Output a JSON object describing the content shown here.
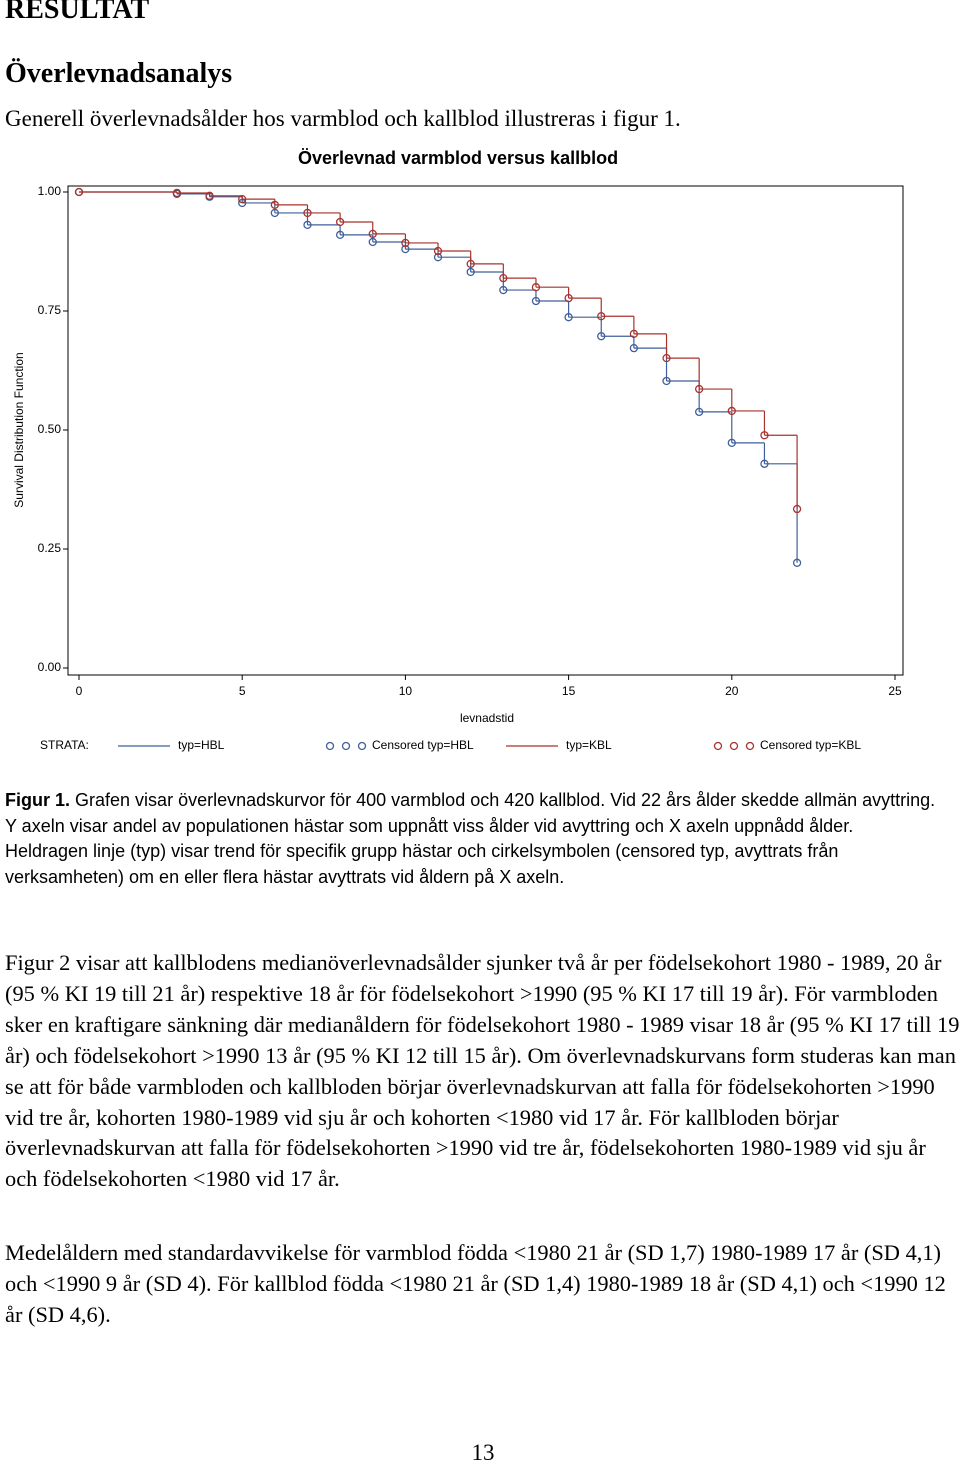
{
  "heading": "RESULTAT",
  "subheading": "Överlevnadsanalys",
  "intro": "Generell överlevnadsålder hos varmblod och kallblod illustreras i figur 1.",
  "chart_data": {
    "type": "step",
    "title": "Överlevnad varmblod versus kallblod",
    "x_label": "levnadstid",
    "y_label": "Survival Distribution Function",
    "legend_title": "STRATA:",
    "x": [
      0,
      3,
      4,
      5,
      6,
      7,
      8,
      9,
      10,
      11,
      12,
      13,
      14,
      15,
      16,
      17,
      18,
      19,
      20,
      21,
      22
    ],
    "series": [
      {
        "name": "typ=HBL",
        "censored_name": "Censored typ=HBL",
        "color": "#3e5f9b",
        "values": [
          1.0,
          0.996,
          0.99,
          0.977,
          0.956,
          0.931,
          0.91,
          0.895,
          0.88,
          0.863,
          0.832,
          0.794,
          0.771,
          0.737,
          0.697,
          0.672,
          0.603,
          0.538,
          0.473,
          0.429,
          0.221
        ]
      },
      {
        "name": "typ=KBL",
        "censored_name": "Censored typ=KBL",
        "color": "#a8322c",
        "values": [
          1.0,
          0.998,
          0.992,
          0.985,
          0.973,
          0.956,
          0.937,
          0.912,
          0.893,
          0.876,
          0.849,
          0.819,
          0.8,
          0.777,
          0.739,
          0.702,
          0.651,
          0.586,
          0.54,
          0.489,
          0.334
        ]
      }
    ],
    "xlim": [
      0,
      25
    ],
    "xticks": [
      0,
      5,
      10,
      15,
      20,
      25
    ],
    "ylim": [
      0,
      1
    ],
    "yticks": [
      {
        "value": 0,
        "label": "0.00"
      },
      {
        "value": 0.25,
        "label": "0.25"
      },
      {
        "value": 0.5,
        "label": "0.50"
      },
      {
        "value": 0.75,
        "label": "0.75"
      },
      {
        "value": 1,
        "label": "1.00"
      }
    ]
  },
  "caption": {
    "label": "Figur 1.",
    "text": "Grafen visar överlevnadskurvor för 400 varmblod och 420 kallblod. Vid 22 års ålder skedde allmän avyttring. Y axeln visar andel av populationen hästar som uppnått viss ålder vid avyttring och X axeln uppnådd ålder. Heldragen linje (typ) visar trend för specifik grupp hästar och cirkelsymbolen (censored typ, avyttrats från verksamheten) om en eller flera hästar avyttrats vid åldern på X axeln."
  },
  "paragraphs": [
    "Figur 2 visar att kallblodens medianöverlevnadsålder sjunker två år per födelsekohort 1980 - 1989, 20 år (95 % KI 19 till 21 år) respektive 18 år för födelsekohort >1990 (95 % KI 17 till 19 år). För varmbloden sker en kraftigare sänkning där medianåldern för födelsekohort 1980 - 1989 visar 18 år (95 % KI 17 till 19 år) och födelsekohort >1990 13 år (95 % KI 12 till 15 år). Om överlevnadskurvans form studeras kan man se att för både varmbloden och kallbloden börjar överlevnadskurvan att falla för födelsekohorten >1990 vid tre år, kohorten 1980-1989 vid sju år och kohorten <1980 vid 17 år. För kallbloden börjar överlevnadskurvan att falla för födelsekohorten >1990 vid tre år, födelsekohorten 1980-1989 vid sju år och födelsekohorten <1980 vid 17 år.",
    "Medelåldern med standardavvikelse för varmblod födda <1980 21 år (SD 1,7) 1980-1989 17 år (SD 4,1) och <1990 9 år (SD 4). För kallblod födda <1980 21 år (SD 1,4) 1980-1989 18 år (SD 4,1) och <1990 12 år (SD 4,6)."
  ],
  "page_number": 13
}
